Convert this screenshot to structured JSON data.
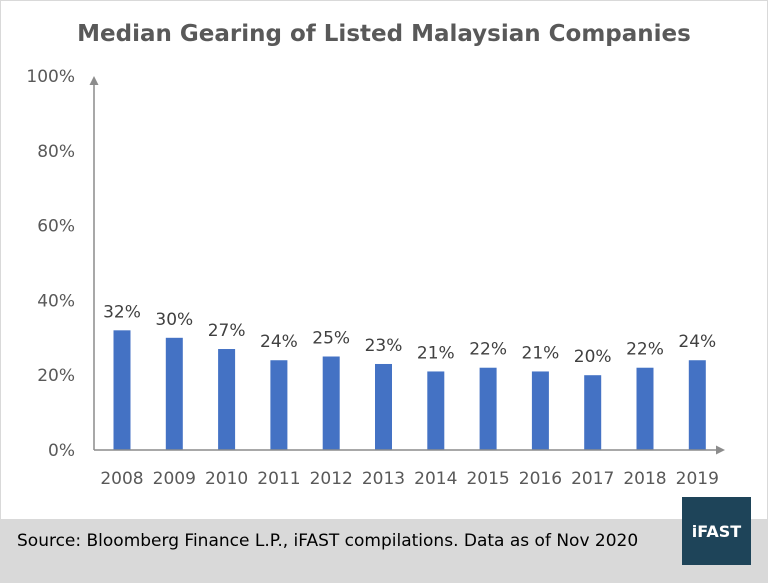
{
  "chart_data": {
    "type": "bar",
    "title": "Median Gearing of Listed Malaysian Companies",
    "categories": [
      "2008",
      "2009",
      "2010",
      "2011",
      "2012",
      "2013",
      "2014",
      "2015",
      "2016",
      "2017",
      "2018",
      "2019"
    ],
    "values": [
      32,
      30,
      27,
      24,
      25,
      23,
      21,
      22,
      21,
      20,
      22,
      24
    ],
    "data_labels": [
      "32%",
      "30%",
      "27%",
      "24%",
      "25%",
      "23%",
      "21%",
      "22%",
      "21%",
      "20%",
      "22%",
      "24%"
    ],
    "y_ticks": [
      "0%",
      "20%",
      "40%",
      "60%",
      "80%",
      "100%"
    ],
    "ylim": [
      0,
      100
    ],
    "grid": false,
    "legend": "none",
    "bar_color": "#4472c4"
  },
  "footer": {
    "source": "Source: Bloomberg Finance L.P., iFAST compilations. Data as of Nov 2020",
    "logo_text": "iFAST",
    "background": "#d9d9d9",
    "logo_color": "#1e4459"
  }
}
